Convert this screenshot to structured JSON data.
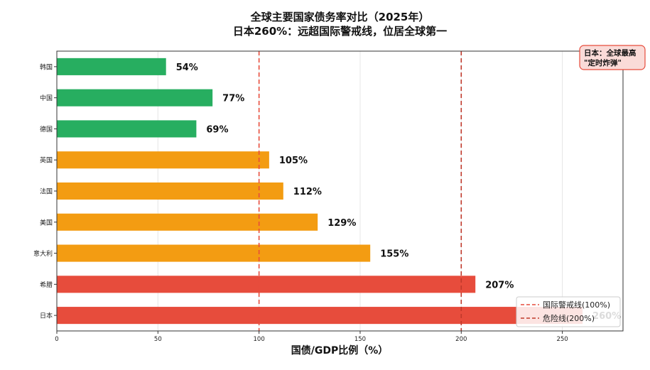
{
  "chart_data": {
    "type": "bar",
    "orientation": "horizontal",
    "title": "全球主要国家债务率对比（2025年）",
    "subtitle": "日本260%：远超国际警戒线，位居全球第一",
    "xlabel": "国债/GDP比例（%）",
    "ylabel": "",
    "xlim": [
      0,
      280
    ],
    "x_ticks": [
      0,
      50,
      100,
      150,
      200,
      250
    ],
    "grid": "vertical",
    "categories": [
      "韩国",
      "中国",
      "德国",
      "英国",
      "法国",
      "美国",
      "意大利",
      "希腊",
      "日本"
    ],
    "values": [
      54,
      77,
      69,
      105,
      112,
      129,
      155,
      207,
      260
    ],
    "value_labels": [
      "54%",
      "77%",
      "69%",
      "105%",
      "112%",
      "129%",
      "155%",
      "207%",
      "260%"
    ],
    "bar_colors": [
      "#27ae60",
      "#27ae60",
      "#27ae60",
      "#f39c12",
      "#f39c12",
      "#f39c12",
      "#f39c12",
      "#e74c3c",
      "#e74c3c"
    ],
    "reference_lines": [
      {
        "value": 100,
        "label": "国际警戒线(100%)",
        "color": "#e74c3c",
        "style": "dashed"
      },
      {
        "value": 200,
        "label": "危险线(200%)",
        "color": "#c0392b",
        "style": "dashed"
      }
    ],
    "legend_placement": "bottom-right",
    "annotation": {
      "line1": "日本：全球最高",
      "line2": "\"定时炸弹\"",
      "bg": "#fadbd8",
      "border": "#e74c3c"
    }
  }
}
